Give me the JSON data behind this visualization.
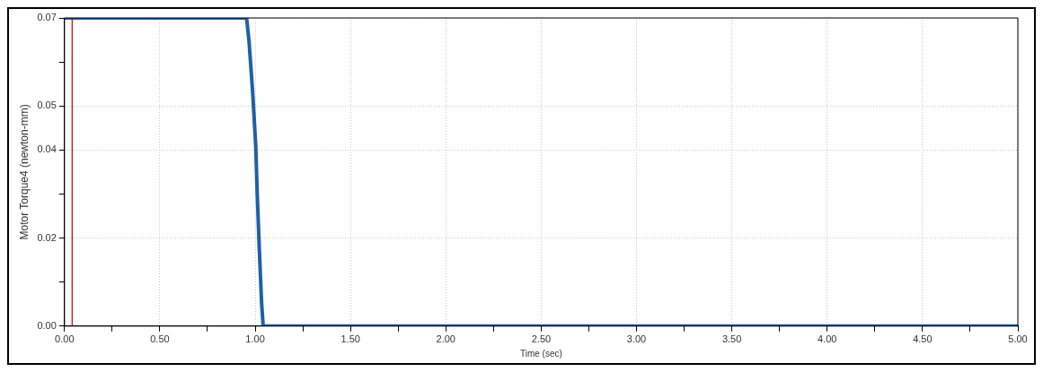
{
  "chart_data": {
    "type": "line",
    "xlabel": "Time (sec)",
    "ylabel": "Motor Torque4 (newton-mm)",
    "x": [
      0,
      0.955,
      0.968,
      0.987,
      1.003,
      1.01,
      1.022,
      1.034,
      1.042,
      5
    ],
    "series": [
      {
        "color": "#1f5fa8",
        "values": [
          0.07,
          0.07,
          0.0646,
          0.053,
          0.0409,
          0.0309,
          0.0172,
          0.005,
          0,
          0
        ]
      }
    ],
    "xlim": [
      0,
      5
    ],
    "ylim": [
      0,
      0.07
    ],
    "xticks": [
      {
        "value": 0,
        "label": "0.00"
      },
      {
        "value": 0.25,
        "label": null
      },
      {
        "value": 0.5,
        "label": "0.50"
      },
      {
        "value": 0.75,
        "label": null
      },
      {
        "value": 1,
        "label": "1.00"
      },
      {
        "value": 1.25,
        "label": null
      },
      {
        "value": 1.5,
        "label": "1.50"
      },
      {
        "value": 1.75,
        "label": null
      },
      {
        "value": 2,
        "label": "2.00"
      },
      {
        "value": 2.25,
        "label": null
      },
      {
        "value": 2.5,
        "label": "2.50"
      },
      {
        "value": 2.75,
        "label": null
      },
      {
        "value": 3,
        "label": "3.00"
      },
      {
        "value": 3.25,
        "label": null
      },
      {
        "value": 3.5,
        "label": "3.50"
      },
      {
        "value": 3.75,
        "label": null
      },
      {
        "value": 4,
        "label": "4.00"
      },
      {
        "value": 4.25,
        "label": null
      },
      {
        "value": 4.5,
        "label": "4.50"
      },
      {
        "value": 4.75,
        "label": null
      },
      {
        "value": 5,
        "label": "5.00"
      }
    ],
    "yticks": [
      {
        "value": 0,
        "label": "0.00"
      },
      {
        "value": 0.01,
        "label": null
      },
      {
        "value": 0.02,
        "label": "0.02"
      },
      {
        "value": 0.03,
        "label": null
      },
      {
        "value": 0.04,
        "label": "0.04"
      },
      {
        "value": 0.05,
        "label": "0.05"
      },
      {
        "value": 0.06,
        "label": null
      },
      {
        "value": 0.07,
        "label": "0.07"
      }
    ],
    "ref_lines": [
      {
        "axis": "x",
        "value": 0.04,
        "color": "#c00000"
      }
    ],
    "grid": true,
    "legend": false,
    "marker": "none",
    "line_style": "solid"
  }
}
